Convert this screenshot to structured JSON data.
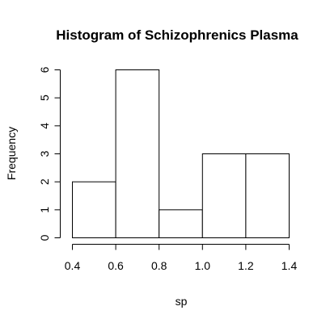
{
  "chart_data": {
    "type": "bar",
    "title": "Histogram of Schizophrenics Plasma",
    "xlabel": "sp",
    "ylabel": "Frequency",
    "bins": [
      {
        "start": 0.4,
        "end": 0.6,
        "count": 2
      },
      {
        "start": 0.6,
        "end": 0.8,
        "count": 6
      },
      {
        "start": 0.8,
        "end": 1.0,
        "count": 1
      },
      {
        "start": 1.0,
        "end": 1.2,
        "count": 3
      },
      {
        "start": 1.2,
        "end": 1.4,
        "count": 3
      }
    ],
    "x_ticks": [
      {
        "value": 0.4,
        "label": "0.4"
      },
      {
        "value": 0.6,
        "label": "0.6"
      },
      {
        "value": 0.8,
        "label": "0.8"
      },
      {
        "value": 1.0,
        "label": "1.0"
      },
      {
        "value": 1.2,
        "label": "1.2"
      },
      {
        "value": 1.4,
        "label": "1.4"
      }
    ],
    "y_ticks": [
      {
        "value": 0,
        "label": "0"
      },
      {
        "value": 1,
        "label": "1"
      },
      {
        "value": 2,
        "label": "2"
      },
      {
        "value": 3,
        "label": "3"
      },
      {
        "value": 4,
        "label": "4"
      },
      {
        "value": 5,
        "label": "5"
      },
      {
        "value": 6,
        "label": "6"
      }
    ],
    "xlim": [
      0.4,
      1.4
    ],
    "ylim": [
      0,
      6
    ],
    "grid": false,
    "legend": "none"
  }
}
